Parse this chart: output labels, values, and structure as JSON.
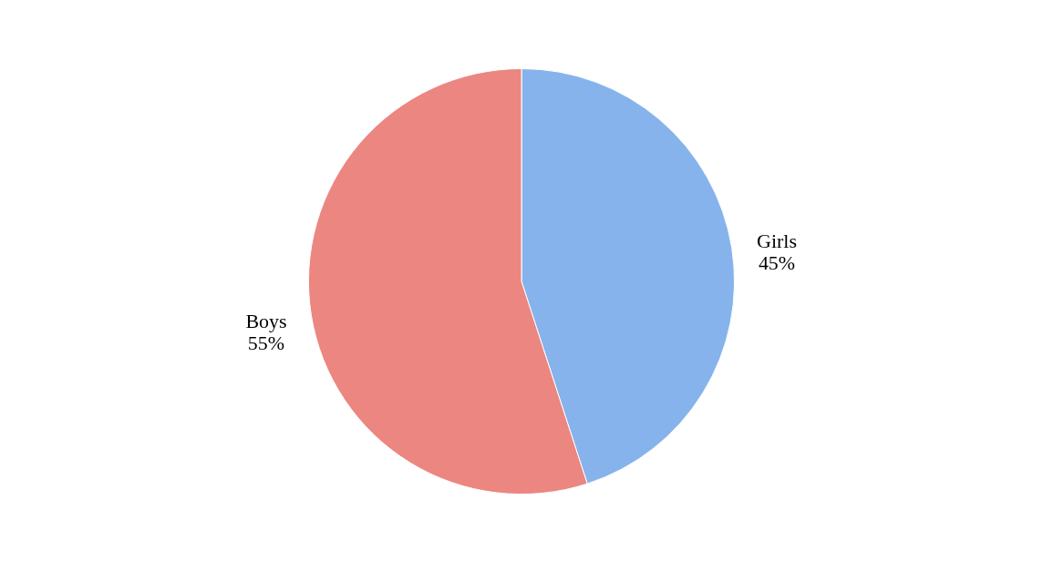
{
  "chart_data": {
    "type": "pie",
    "categories": [
      "Girls",
      "Boys"
    ],
    "values": [
      45,
      55
    ],
    "colors": [
      "#86b3eb",
      "#ec8680"
    ],
    "value_labels": [
      "45%",
      "55%"
    ],
    "legend": false
  }
}
